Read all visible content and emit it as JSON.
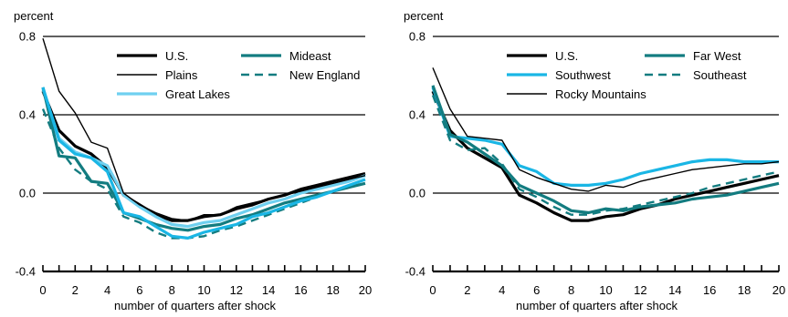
{
  "chart_data": [
    {
      "type": "line",
      "ylabel": "percent",
      "xlabel": "number of quarters after shock",
      "xlim": [
        0,
        20
      ],
      "ylim": [
        -0.4,
        0.8
      ],
      "yticks": [
        "0.8",
        "0.4",
        "0.0",
        "-0.4"
      ],
      "xticks": [
        "0",
        "2",
        "4",
        "6",
        "8",
        "10",
        "12",
        "14",
        "16",
        "18",
        "20"
      ],
      "grid": "horizontal",
      "legend": "top-right",
      "x": [
        0,
        1,
        2,
        3,
        4,
        5,
        6,
        7,
        8,
        9,
        10,
        11,
        12,
        13,
        14,
        15,
        16,
        17,
        18,
        19,
        20
      ],
      "series": [
        {
          "name": "U.S.",
          "color": "#000000",
          "style": "thick",
          "values": [
            0.52,
            0.32,
            0.24,
            0.2,
            0.13,
            -0.01,
            -0.06,
            -0.11,
            -0.14,
            -0.14,
            -0.12,
            -0.11,
            -0.08,
            -0.06,
            -0.03,
            -0.01,
            0.02,
            0.04,
            0.06,
            0.08,
            0.1
          ]
        },
        {
          "name": "Plains",
          "color": "#000000",
          "style": "thin",
          "values": [
            0.79,
            0.52,
            0.41,
            0.26,
            0.23,
            0.0,
            -0.06,
            -0.1,
            -0.13,
            -0.14,
            -0.11,
            -0.11,
            -0.07,
            -0.05,
            -0.03,
            -0.01,
            0.01,
            0.03,
            0.05,
            0.07,
            0.09
          ]
        },
        {
          "name": "Great Lakes",
          "color": "#6fd0f0",
          "style": "thick",
          "values": [
            0.53,
            0.28,
            0.21,
            0.18,
            0.14,
            -0.01,
            -0.07,
            -0.12,
            -0.16,
            -0.17,
            -0.15,
            -0.14,
            -0.11,
            -0.08,
            -0.05,
            -0.03,
            0.0,
            0.02,
            0.04,
            0.06,
            0.09
          ]
        },
        {
          "name": "Mideast",
          "color": "#137c80",
          "style": "thick",
          "values": [
            0.54,
            0.19,
            0.18,
            0.06,
            0.05,
            -0.1,
            -0.13,
            -0.16,
            -0.18,
            -0.19,
            -0.17,
            -0.16,
            -0.13,
            -0.11,
            -0.08,
            -0.05,
            -0.03,
            -0.01,
            0.01,
            0.03,
            0.05
          ]
        },
        {
          "name": "New England",
          "color": "#137c80",
          "style": "dashed",
          "values": [
            0.43,
            0.23,
            0.12,
            0.06,
            0.02,
            -0.12,
            -0.15,
            -0.2,
            -0.23,
            -0.23,
            -0.22,
            -0.19,
            -0.17,
            -0.14,
            -0.11,
            -0.08,
            -0.05,
            -0.02,
            0.01,
            0.04,
            0.07
          ]
        },
        {
          "name": "",
          "color": "#1ab6e5",
          "style": "thick",
          "values": [
            0.54,
            0.27,
            0.2,
            0.18,
            0.11,
            -0.1,
            -0.12,
            -0.17,
            -0.22,
            -0.23,
            -0.2,
            -0.18,
            -0.16,
            -0.12,
            -0.1,
            -0.07,
            -0.04,
            -0.02,
            0.01,
            0.04,
            0.07
          ]
        }
      ]
    },
    {
      "type": "line",
      "ylabel": "percent",
      "xlabel": "number of quarters after shock",
      "xlim": [
        0,
        20
      ],
      "ylim": [
        -0.4,
        0.8
      ],
      "yticks": [
        "0.8",
        "0.4",
        "0.0",
        "-0.4"
      ],
      "xticks": [
        "0",
        "2",
        "4",
        "6",
        "8",
        "10",
        "12",
        "14",
        "16",
        "18",
        "20"
      ],
      "grid": "horizontal",
      "legend": "top-right",
      "x": [
        0,
        1,
        2,
        3,
        4,
        5,
        6,
        7,
        8,
        9,
        10,
        11,
        12,
        13,
        14,
        15,
        16,
        17,
        18,
        19,
        20
      ],
      "series": [
        {
          "name": "U.S.",
          "color": "#000000",
          "style": "thick",
          "values": [
            0.52,
            0.32,
            0.23,
            0.18,
            0.13,
            -0.01,
            -0.05,
            -0.1,
            -0.14,
            -0.14,
            -0.12,
            -0.11,
            -0.08,
            -0.06,
            -0.03,
            -0.01,
            0.01,
            0.03,
            0.05,
            0.07,
            0.09
          ]
        },
        {
          "name": "Southwest",
          "color": "#1ab6e5",
          "style": "thick",
          "values": [
            0.54,
            0.29,
            0.28,
            0.27,
            0.25,
            0.14,
            0.11,
            0.05,
            0.04,
            0.04,
            0.05,
            0.07,
            0.1,
            0.12,
            0.14,
            0.16,
            0.17,
            0.17,
            0.16,
            0.16,
            0.16
          ]
        },
        {
          "name": "Rocky Mountains",
          "color": "#000000",
          "style": "thin",
          "values": [
            0.64,
            0.43,
            0.29,
            0.28,
            0.27,
            0.12,
            0.08,
            0.05,
            0.02,
            0.01,
            0.04,
            0.03,
            0.06,
            0.08,
            0.1,
            0.12,
            0.13,
            0.14,
            0.15,
            0.15,
            0.16
          ]
        },
        {
          "name": "Far West",
          "color": "#137c80",
          "style": "thick",
          "values": [
            0.55,
            0.3,
            0.26,
            0.2,
            0.14,
            0.04,
            0.0,
            -0.04,
            -0.09,
            -0.1,
            -0.08,
            -0.09,
            -0.07,
            -0.06,
            -0.05,
            -0.03,
            -0.02,
            -0.01,
            0.01,
            0.03,
            0.05
          ]
        },
        {
          "name": "Southeast",
          "color": "#137c80",
          "style": "dashed",
          "values": [
            0.5,
            0.27,
            0.22,
            0.23,
            0.15,
            0.02,
            -0.02,
            -0.07,
            -0.11,
            -0.11,
            -0.09,
            -0.08,
            -0.06,
            -0.04,
            -0.02,
            0.0,
            0.03,
            0.05,
            0.07,
            0.09,
            0.11
          ]
        }
      ]
    }
  ]
}
